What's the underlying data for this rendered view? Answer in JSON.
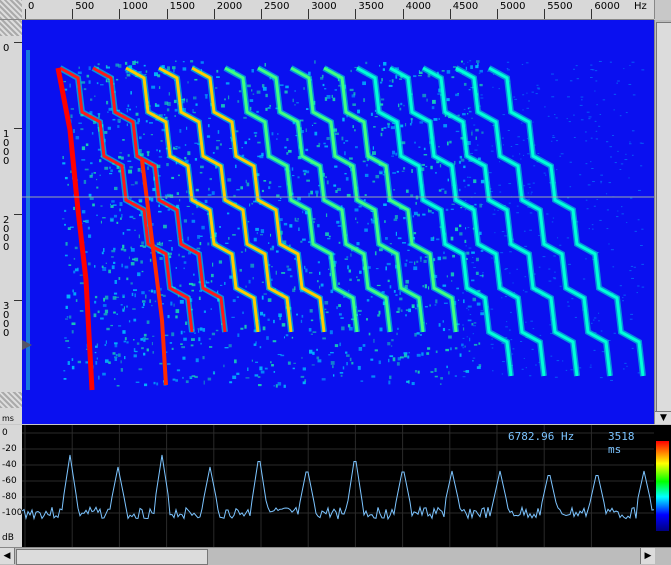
{
  "window": {
    "title": ""
  },
  "top_ruler": {
    "unit": "Hz",
    "labels": [
      "0",
      "500",
      "1000",
      "1500",
      "2000",
      "2500",
      "3000",
      "3500",
      "4000",
      "4500",
      "5000",
      "5500",
      "6000"
    ]
  },
  "left_ruler": {
    "unit": "ms",
    "labels": [
      "0",
      "1000",
      "2000",
      "3000"
    ]
  },
  "spectrum_panel": {
    "frequency_readout": "6782.96 Hz",
    "time_readout": "3518 ms",
    "db_unit": "dB",
    "db_labels": [
      "0",
      "-20",
      "-40",
      "-60",
      "-80",
      "-100"
    ]
  },
  "colors": {
    "background": "#0a10f0",
    "ridge_hot": "#ff0000",
    "ridge_warm": "#ffff00",
    "ridge_mid": "#00ff88",
    "ridge_cool": "#00ffff",
    "spectrum_line": "#7cc4ff"
  },
  "icons": {
    "scroll_up": "up-arrow-icon",
    "scroll_down": "down-arrow-icon",
    "scroll_left": "left-arrow-icon",
    "scroll_right": "right-arrow-icon",
    "playhead": "triangle-marker-icon"
  }
}
